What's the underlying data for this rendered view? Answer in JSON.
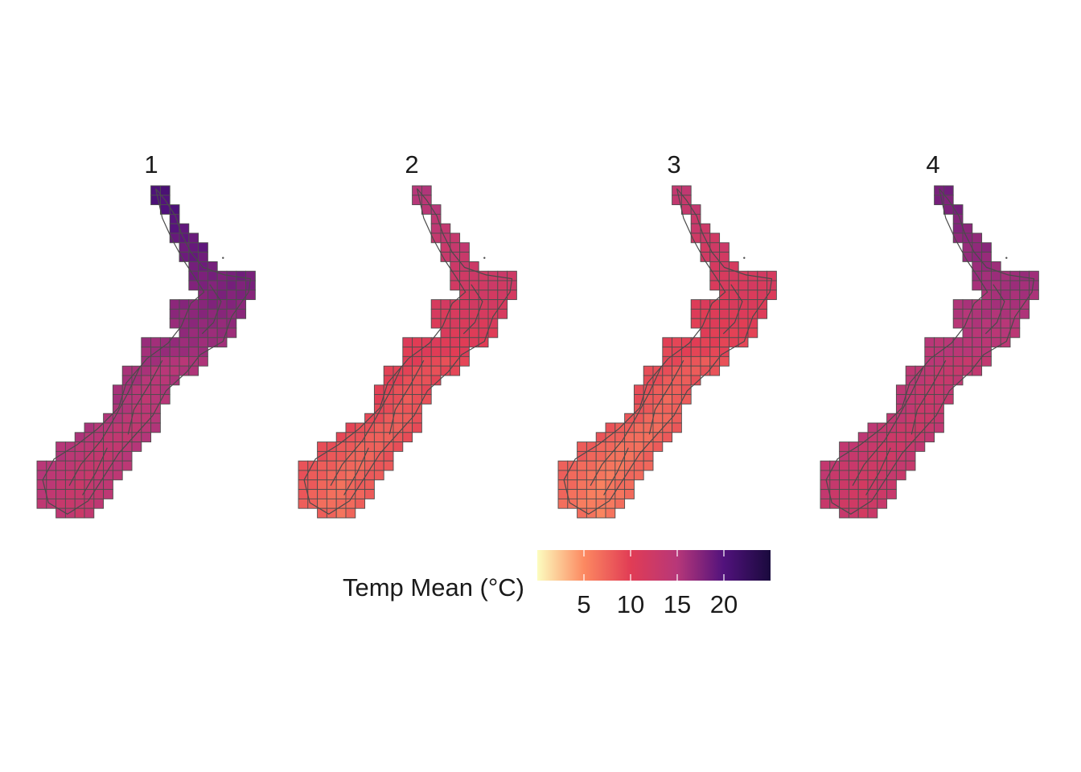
{
  "chart_data": {
    "type": "heatmap",
    "legend": {
      "title": "Temp Mean (°C)",
      "position": "bottom",
      "ticks": [
        5,
        10,
        15,
        20
      ],
      "tick_labels": [
        "5",
        "10",
        "15",
        "20"
      ],
      "range": [
        0,
        25
      ],
      "palette": [
        "#fcfdbf",
        "#fc8961",
        "#e13c55",
        "#b73779",
        "#51127c",
        "#000004"
      ],
      "palette_name": "magma (reversed)"
    },
    "panels": [
      {
        "label": "1",
        "north_mean": 20.5,
        "central_mean": 16.5,
        "south_mean": 14.2
      },
      {
        "label": "2",
        "north_mean": 15.2,
        "central_mean": 10.5,
        "south_mean": 7.8
      },
      {
        "label": "3",
        "north_mean": 13.8,
        "central_mean": 9.8,
        "south_mean": 6.8
      },
      {
        "label": "4",
        "north_mean": 18.3,
        "central_mean": 14.8,
        "south_mean": 13.2
      }
    ],
    "grid": true,
    "region": "New Zealand"
  }
}
